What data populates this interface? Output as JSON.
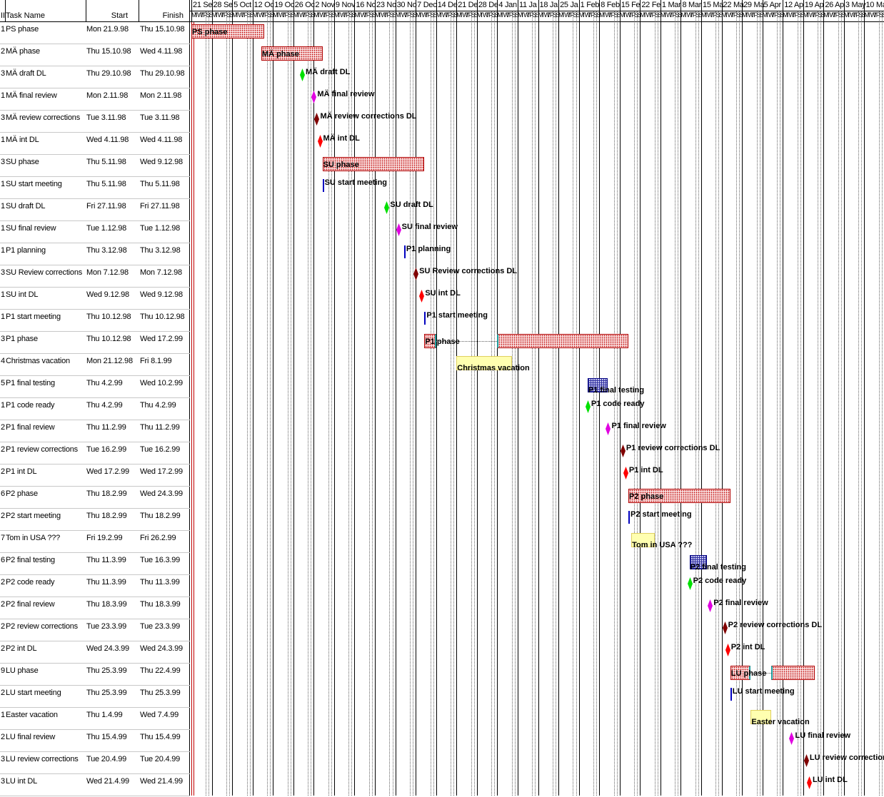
{
  "table": {
    "headers": {
      "id": "II",
      "name": "Task Name",
      "start": "Start",
      "finish": "Finish"
    },
    "rows": [
      {
        "id": "1",
        "name": "PS phase",
        "start": "Mon 21.9.98",
        "finish": "Thu 15.10.98"
      },
      {
        "id": "2",
        "name": "MÄ phase",
        "start": "Thu 15.10.98",
        "finish": "Wed 4.11.98"
      },
      {
        "id": "3",
        "name": "MÄ draft DL",
        "start": "Thu 29.10.98",
        "finish": "Thu 29.10.98"
      },
      {
        "id": "1",
        "name": "MÄ final review",
        "start": "Mon 2.11.98",
        "finish": "Mon 2.11.98"
      },
      {
        "id": "3",
        "name": "MÄ review corrections",
        "start": "Tue 3.11.98",
        "finish": "Tue 3.11.98"
      },
      {
        "id": "1",
        "name": "MÄ int DL",
        "start": "Wed 4.11.98",
        "finish": "Wed 4.11.98"
      },
      {
        "id": "3",
        "name": "SU phase",
        "start": "Thu 5.11.98",
        "finish": "Wed 9.12.98"
      },
      {
        "id": "1",
        "name": "SU start meeting",
        "start": "Thu 5.11.98",
        "finish": "Thu 5.11.98"
      },
      {
        "id": "1",
        "name": "SU draft DL",
        "start": "Fri 27.11.98",
        "finish": "Fri 27.11.98"
      },
      {
        "id": "1",
        "name": "SU final review",
        "start": "Tue 1.12.98",
        "finish": "Tue 1.12.98"
      },
      {
        "id": "1",
        "name": "P1 planning",
        "start": "Thu 3.12.98",
        "finish": "Thu 3.12.98"
      },
      {
        "id": "3",
        "name": "SU Review corrections",
        "start": "Mon 7.12.98",
        "finish": "Mon 7.12.98"
      },
      {
        "id": "1",
        "name": "SU int DL",
        "start": "Wed 9.12.98",
        "finish": "Wed 9.12.98"
      },
      {
        "id": "1",
        "name": "P1 start meeting",
        "start": "Thu 10.12.98",
        "finish": "Thu 10.12.98"
      },
      {
        "id": "3",
        "name": "P1 phase",
        "start": "Thu 10.12.98",
        "finish": "Wed 17.2.99"
      },
      {
        "id": "4",
        "name": "Christmas vacation",
        "start": "Mon 21.12.98",
        "finish": "Fri 8.1.99"
      },
      {
        "id": "5",
        "name": "P1 final testing",
        "start": "Thu 4.2.99",
        "finish": "Wed 10.2.99"
      },
      {
        "id": "1",
        "name": "P1 code ready",
        "start": "Thu 4.2.99",
        "finish": "Thu 4.2.99"
      },
      {
        "id": "2",
        "name": "P1 final review",
        "start": "Thu 11.2.99",
        "finish": "Thu 11.2.99"
      },
      {
        "id": "2",
        "name": "P1 review corrections",
        "start": "Tue 16.2.99",
        "finish": "Tue 16.2.99"
      },
      {
        "id": "2",
        "name": "P1 int DL",
        "start": "Wed 17.2.99",
        "finish": "Wed 17.2.99"
      },
      {
        "id": "6",
        "name": "P2 phase",
        "start": "Thu 18.2.99",
        "finish": "Wed 24.3.99"
      },
      {
        "id": "2",
        "name": "P2 start meeting",
        "start": "Thu 18.2.99",
        "finish": "Thu 18.2.99"
      },
      {
        "id": "7",
        "name": "Tom in USA ???",
        "start": "Fri 19.2.99",
        "finish": "Fri 26.2.99"
      },
      {
        "id": "6",
        "name": "P2 final testing",
        "start": "Thu 11.3.99",
        "finish": "Tue 16.3.99"
      },
      {
        "id": "2",
        "name": "P2 code ready",
        "start": "Thu 11.3.99",
        "finish": "Thu 11.3.99"
      },
      {
        "id": "2",
        "name": "P2 final review",
        "start": "Thu 18.3.99",
        "finish": "Thu 18.3.99"
      },
      {
        "id": "2",
        "name": "P2 review corrections",
        "start": "Tue 23.3.99",
        "finish": "Tue 23.3.99"
      },
      {
        "id": "2",
        "name": "P2 int DL",
        "start": "Wed 24.3.99",
        "finish": "Wed 24.3.99"
      },
      {
        "id": "9",
        "name": "LU phase",
        "start": "Thu 25.3.99",
        "finish": "Thu 22.4.99"
      },
      {
        "id": "2",
        "name": "LU start meeting",
        "start": "Thu 25.3.99",
        "finish": "Thu 25.3.99"
      },
      {
        "id": "1",
        "name": "Easter vacation",
        "start": "Thu 1.4.99",
        "finish": "Wed 7.4.99"
      },
      {
        "id": "2",
        "name": "LU final review",
        "start": "Thu 15.4.99",
        "finish": "Thu 15.4.99"
      },
      {
        "id": "3",
        "name": "LU review corrections",
        "start": "Tue 20.4.99",
        "finish": "Tue 20.4.99"
      },
      {
        "id": "3",
        "name": "LU int DL",
        "start": "Wed 21.4.99",
        "finish": "Wed 21.4.99"
      }
    ]
  },
  "timeline": {
    "weeks": [
      "21 Se",
      "28 Se",
      "5 Oct",
      "12 Oc",
      "19 Oc",
      "26 Oc",
      "2 Nov",
      "9 Nov",
      "16 No",
      "23 No",
      "30 No",
      "7 Dec",
      "14 De",
      "21 De",
      "28 De",
      "4 Jan",
      "11 Ja",
      "18 Ja",
      "25 Ja",
      "1 Feb",
      "8 Feb",
      "15 Fe",
      "22 Fe",
      "1 Mar",
      "8 Mar",
      "15 Ma",
      "22 Ma",
      "29 Ma",
      "5 Apr",
      "12 Ap",
      "19 Ap",
      "26 Ap",
      "3 May",
      "10 Ma"
    ],
    "day_letters": [
      "M",
      "T",
      "W",
      "T",
      "F",
      "S",
      "S"
    ]
  },
  "gantt": {
    "bars": [
      {
        "row": 0,
        "label": "PS phase",
        "kind": "phase"
      },
      {
        "row": 1,
        "label": "MÄ phase",
        "kind": "phase"
      },
      {
        "row": 6,
        "label": "SU phase",
        "kind": "phase"
      },
      {
        "row": 14,
        "label": "P1 phase",
        "kind": "phase",
        "split": true
      },
      {
        "row": 15,
        "label": "Christmas vacation",
        "kind": "vacation"
      },
      {
        "row": 16,
        "label": "P1 final testing",
        "kind": "testing"
      },
      {
        "row": 21,
        "label": "P2 phase",
        "kind": "phase"
      },
      {
        "row": 23,
        "label": "Tom in USA ???",
        "kind": "vacation"
      },
      {
        "row": 24,
        "label": "P2 final testing",
        "kind": "testing"
      },
      {
        "row": 29,
        "label": "LU phase",
        "kind": "phase",
        "split": true
      },
      {
        "row": 31,
        "label": "Easter vacation",
        "kind": "vacation"
      }
    ],
    "milestones": [
      {
        "row": 2,
        "label": "MÄ draft DL",
        "color": "#00e000",
        "shape": "diamond"
      },
      {
        "row": 3,
        "label": "MÄ final review",
        "color": "#e000e0",
        "shape": "diamond"
      },
      {
        "row": 4,
        "label": "MÄ review corrections DL",
        "color": "#800000",
        "shape": "diamond"
      },
      {
        "row": 5,
        "label": "MÄ int DL",
        "color": "#ff0000",
        "shape": "diamond"
      },
      {
        "row": 7,
        "label": "SU start meeting",
        "color": "#0000c0",
        "shape": "tick"
      },
      {
        "row": 8,
        "label": "SU draft DL",
        "color": "#00e000",
        "shape": "diamond"
      },
      {
        "row": 9,
        "label": "SU final review",
        "color": "#e000e0",
        "shape": "diamond"
      },
      {
        "row": 10,
        "label": "P1 planning",
        "color": "#0000c0",
        "shape": "tick"
      },
      {
        "row": 11,
        "label": "SU Review corrections DL",
        "color": "#800000",
        "shape": "diamond"
      },
      {
        "row": 12,
        "label": "SU int DL",
        "color": "#ff0000",
        "shape": "diamond"
      },
      {
        "row": 13,
        "label": "P1 start meeting",
        "color": "#0000c0",
        "shape": "tick"
      },
      {
        "row": 17,
        "label": "P1 code ready",
        "color": "#00e000",
        "shape": "diamond"
      },
      {
        "row": 18,
        "label": "P1 final review",
        "color": "#e000e0",
        "shape": "diamond"
      },
      {
        "row": 19,
        "label": "P1 review corrections DL",
        "color": "#800000",
        "shape": "diamond"
      },
      {
        "row": 20,
        "label": "P1 int DL",
        "color": "#ff0000",
        "shape": "diamond"
      },
      {
        "row": 22,
        "label": "P2 start meeting",
        "color": "#0000c0",
        "shape": "tick"
      },
      {
        "row": 25,
        "label": "P2 code ready",
        "color": "#00e000",
        "shape": "diamond"
      },
      {
        "row": 26,
        "label": "P2 final review",
        "color": "#e000e0",
        "shape": "diamond"
      },
      {
        "row": 27,
        "label": "P2 review corrections DL",
        "color": "#800000",
        "shape": "diamond"
      },
      {
        "row": 28,
        "label": "P2 int DL",
        "color": "#ff0000",
        "shape": "diamond"
      },
      {
        "row": 30,
        "label": "LU start meeting",
        "color": "#0000c0",
        "shape": "tick"
      },
      {
        "row": 32,
        "label": "LU final review",
        "color": "#e000e0",
        "shape": "diamond"
      },
      {
        "row": 33,
        "label": "LU review corrections DL",
        "color": "#800000",
        "shape": "diamond"
      },
      {
        "row": 34,
        "label": "LU int DL",
        "color": "#ff0000",
        "shape": "diamond"
      }
    ]
  }
}
